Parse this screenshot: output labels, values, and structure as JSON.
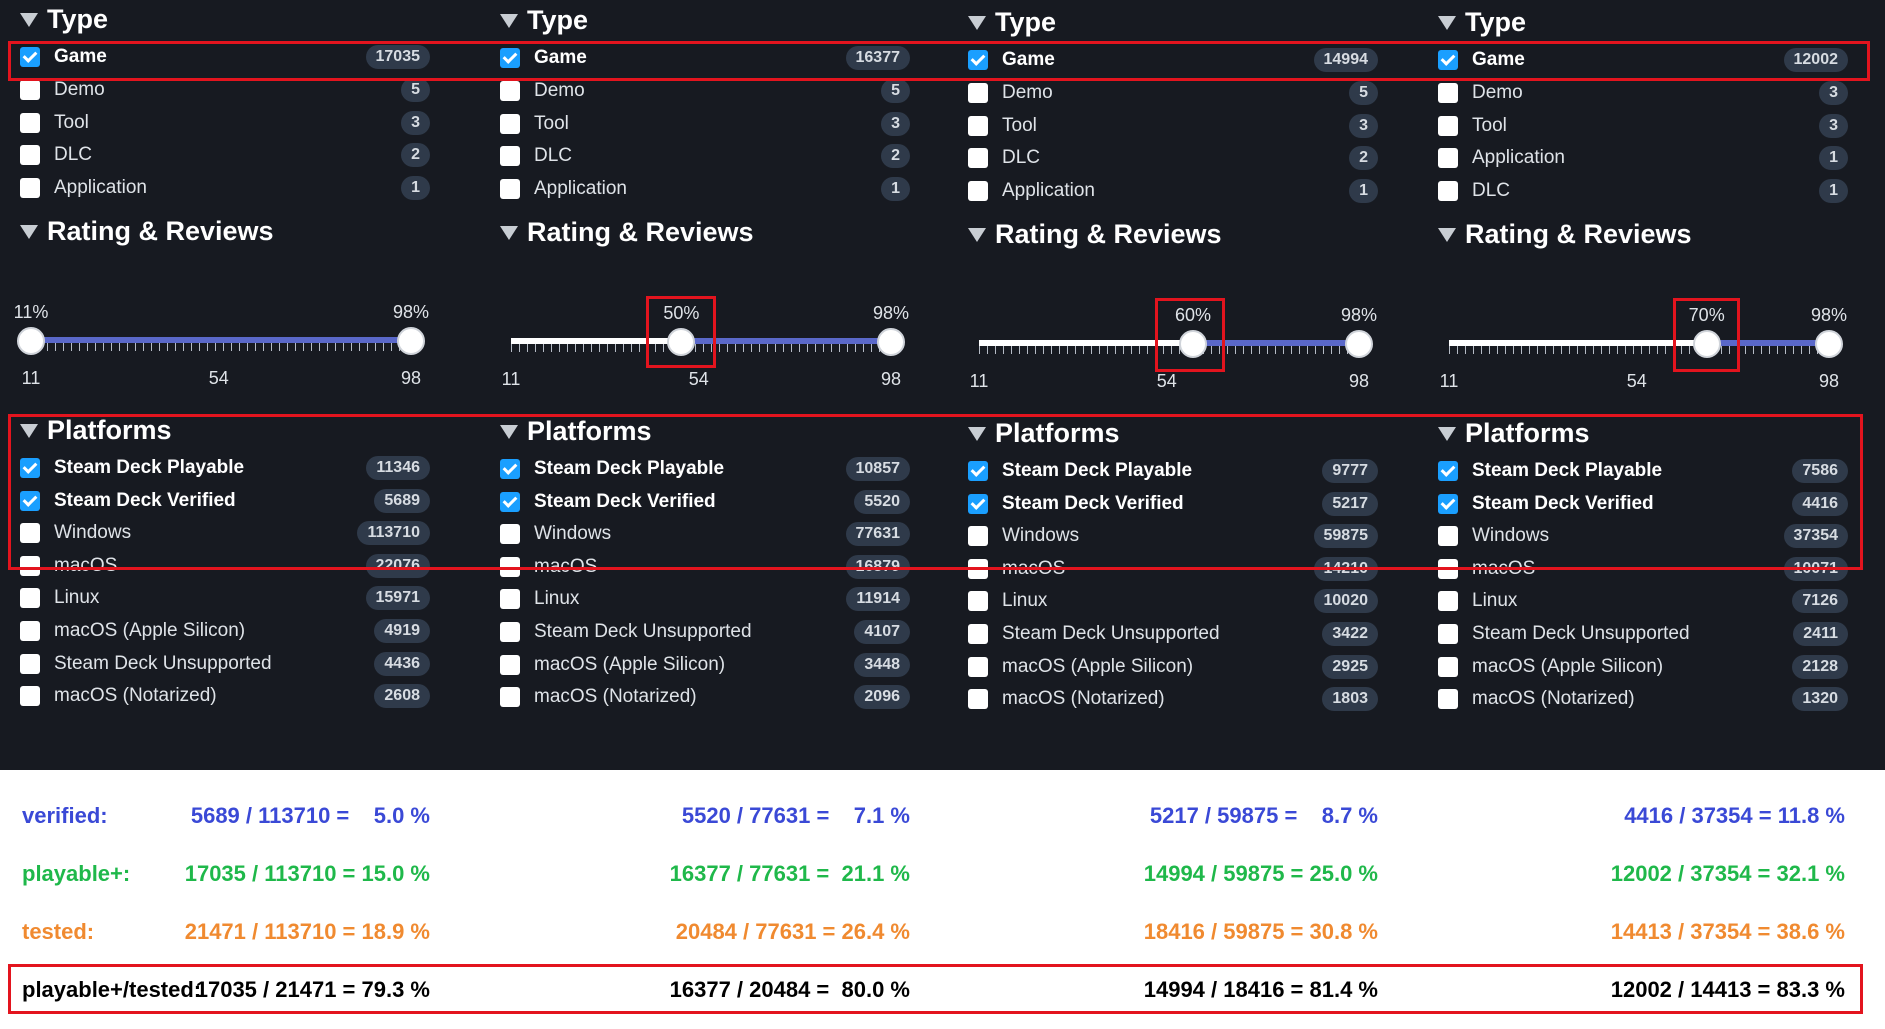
{
  "columns": [
    {
      "type_title": "Type",
      "type_items": [
        {
          "label": "Game",
          "count": "17035",
          "checked": true
        },
        {
          "label": "Demo",
          "count": "5",
          "checked": false
        },
        {
          "label": "Tool",
          "count": "3",
          "checked": false
        },
        {
          "label": "DLC",
          "count": "2",
          "checked": false
        },
        {
          "label": "Application",
          "count": "1",
          "checked": false
        }
      ],
      "rating_title": "Rating & Reviews",
      "rating": {
        "low": "11%",
        "high": "98%",
        "low_value": 11,
        "high_value": 98,
        "ticks": [
          "11",
          "54",
          "98"
        ]
      },
      "platforms_title": "Platforms",
      "platform_items": [
        {
          "label": "Steam Deck Playable",
          "count": "11346",
          "checked": true
        },
        {
          "label": "Steam Deck Verified",
          "count": "5689",
          "checked": true
        },
        {
          "label": "Windows",
          "count": "113710",
          "checked": false
        },
        {
          "label": "macOS",
          "count": "22076",
          "checked": false
        },
        {
          "label": "Linux",
          "count": "15971",
          "checked": false
        },
        {
          "label": "macOS (Apple Silicon)",
          "count": "4919",
          "checked": false
        },
        {
          "label": "Steam Deck Unsupported",
          "count": "4436",
          "checked": false
        },
        {
          "label": "macOS (Notarized)",
          "count": "2608",
          "checked": false
        }
      ]
    },
    {
      "type_title": "Type",
      "type_items": [
        {
          "label": "Game",
          "count": "16377",
          "checked": true
        },
        {
          "label": "Demo",
          "count": "5",
          "checked": false
        },
        {
          "label": "Tool",
          "count": "3",
          "checked": false
        },
        {
          "label": "DLC",
          "count": "2",
          "checked": false
        },
        {
          "label": "Application",
          "count": "1",
          "checked": false
        }
      ],
      "rating_title": "Rating & Reviews",
      "rating": {
        "low": "50%",
        "high": "98%",
        "low_value": 50,
        "high_value": 98,
        "ticks": [
          "11",
          "54",
          "98"
        ]
      },
      "platforms_title": "Platforms",
      "platform_items": [
        {
          "label": "Steam Deck Playable",
          "count": "10857",
          "checked": true
        },
        {
          "label": "Steam Deck Verified",
          "count": "5520",
          "checked": true
        },
        {
          "label": "Windows",
          "count": "77631",
          "checked": false
        },
        {
          "label": "macOS",
          "count": "16879",
          "checked": false
        },
        {
          "label": "Linux",
          "count": "11914",
          "checked": false
        },
        {
          "label": "Steam Deck Unsupported",
          "count": "4107",
          "checked": false
        },
        {
          "label": "macOS (Apple Silicon)",
          "count": "3448",
          "checked": false
        },
        {
          "label": "macOS (Notarized)",
          "count": "2096",
          "checked": false
        }
      ]
    },
    {
      "type_title": "Type",
      "type_items": [
        {
          "label": "Game",
          "count": "14994",
          "checked": true
        },
        {
          "label": "Demo",
          "count": "5",
          "checked": false
        },
        {
          "label": "Tool",
          "count": "3",
          "checked": false
        },
        {
          "label": "DLC",
          "count": "2",
          "checked": false
        },
        {
          "label": "Application",
          "count": "1",
          "checked": false
        }
      ],
      "rating_title": "Rating & Reviews",
      "rating": {
        "low": "60%",
        "high": "98%",
        "low_value": 60,
        "high_value": 98,
        "ticks": [
          "11",
          "54",
          "98"
        ]
      },
      "platforms_title": "Platforms",
      "platform_items": [
        {
          "label": "Steam Deck Playable",
          "count": "9777",
          "checked": true
        },
        {
          "label": "Steam Deck Verified",
          "count": "5217",
          "checked": true
        },
        {
          "label": "Windows",
          "count": "59875",
          "checked": false
        },
        {
          "label": "macOS",
          "count": "14210",
          "checked": false
        },
        {
          "label": "Linux",
          "count": "10020",
          "checked": false
        },
        {
          "label": "Steam Deck Unsupported",
          "count": "3422",
          "checked": false
        },
        {
          "label": "macOS (Apple Silicon)",
          "count": "2925",
          "checked": false
        },
        {
          "label": "macOS (Notarized)",
          "count": "1803",
          "checked": false
        }
      ]
    },
    {
      "type_title": "Type",
      "type_items": [
        {
          "label": "Game",
          "count": "12002",
          "checked": true
        },
        {
          "label": "Demo",
          "count": "3",
          "checked": false
        },
        {
          "label": "Tool",
          "count": "3",
          "checked": false
        },
        {
          "label": "Application",
          "count": "1",
          "checked": false
        },
        {
          "label": "DLC",
          "count": "1",
          "checked": false
        }
      ],
      "rating_title": "Rating & Reviews",
      "rating": {
        "low": "70%",
        "high": "98%",
        "low_value": 70,
        "high_value": 98,
        "ticks": [
          "11",
          "54",
          "98"
        ]
      },
      "platforms_title": "Platforms",
      "platform_items": [
        {
          "label": "Steam Deck Playable",
          "count": "7586",
          "checked": true
        },
        {
          "label": "Steam Deck Verified",
          "count": "4416",
          "checked": true
        },
        {
          "label": "Windows",
          "count": "37354",
          "checked": false
        },
        {
          "label": "macOS",
          "count": "10071",
          "checked": false
        },
        {
          "label": "Linux",
          "count": "7126",
          "checked": false
        },
        {
          "label": "Steam Deck Unsupported",
          "count": "2411",
          "checked": false
        },
        {
          "label": "macOS (Apple Silicon)",
          "count": "2128",
          "checked": false
        },
        {
          "label": "macOS (Notarized)",
          "count": "1320",
          "checked": false
        }
      ]
    }
  ],
  "stats": {
    "labels": {
      "verified": "verified:",
      "playable": "playable+:",
      "tested": "tested:",
      "ratio": "playable+/tested:"
    },
    "verified": [
      "5689 / 113710 =    5.0 %",
      "5520 / 77631 =    7.1 %",
      "5217 / 59875 =    8.7 %",
      "4416 / 37354 = 11.8 %"
    ],
    "playable": [
      "17035 / 113710 = 15.0 %",
      "16377 / 77631 =  21.1 %",
      "14994 / 59875 = 25.0 %",
      "12002 / 37354 = 32.1 %"
    ],
    "tested": [
      "21471 / 113710 = 18.9 %",
      "20484 / 77631 = 26.4 %",
      "18416 / 59875 = 30.8 %",
      "14413 / 37354 = 38.6 %"
    ],
    "ratio": [
      "17035 / 21471 = 79.3 %",
      "16377 / 20484 =  80.0 %",
      "14994 / 18416 = 81.4 %",
      "12002 / 14413 = 83.3 %"
    ]
  },
  "colors": {
    "verified": "#3a49d6",
    "playable": "#1fb84a",
    "tested": "#f08a30",
    "highlight": "#e3141e",
    "checkbox_on": "#1a9fff",
    "panel_bg": "#171a21"
  }
}
